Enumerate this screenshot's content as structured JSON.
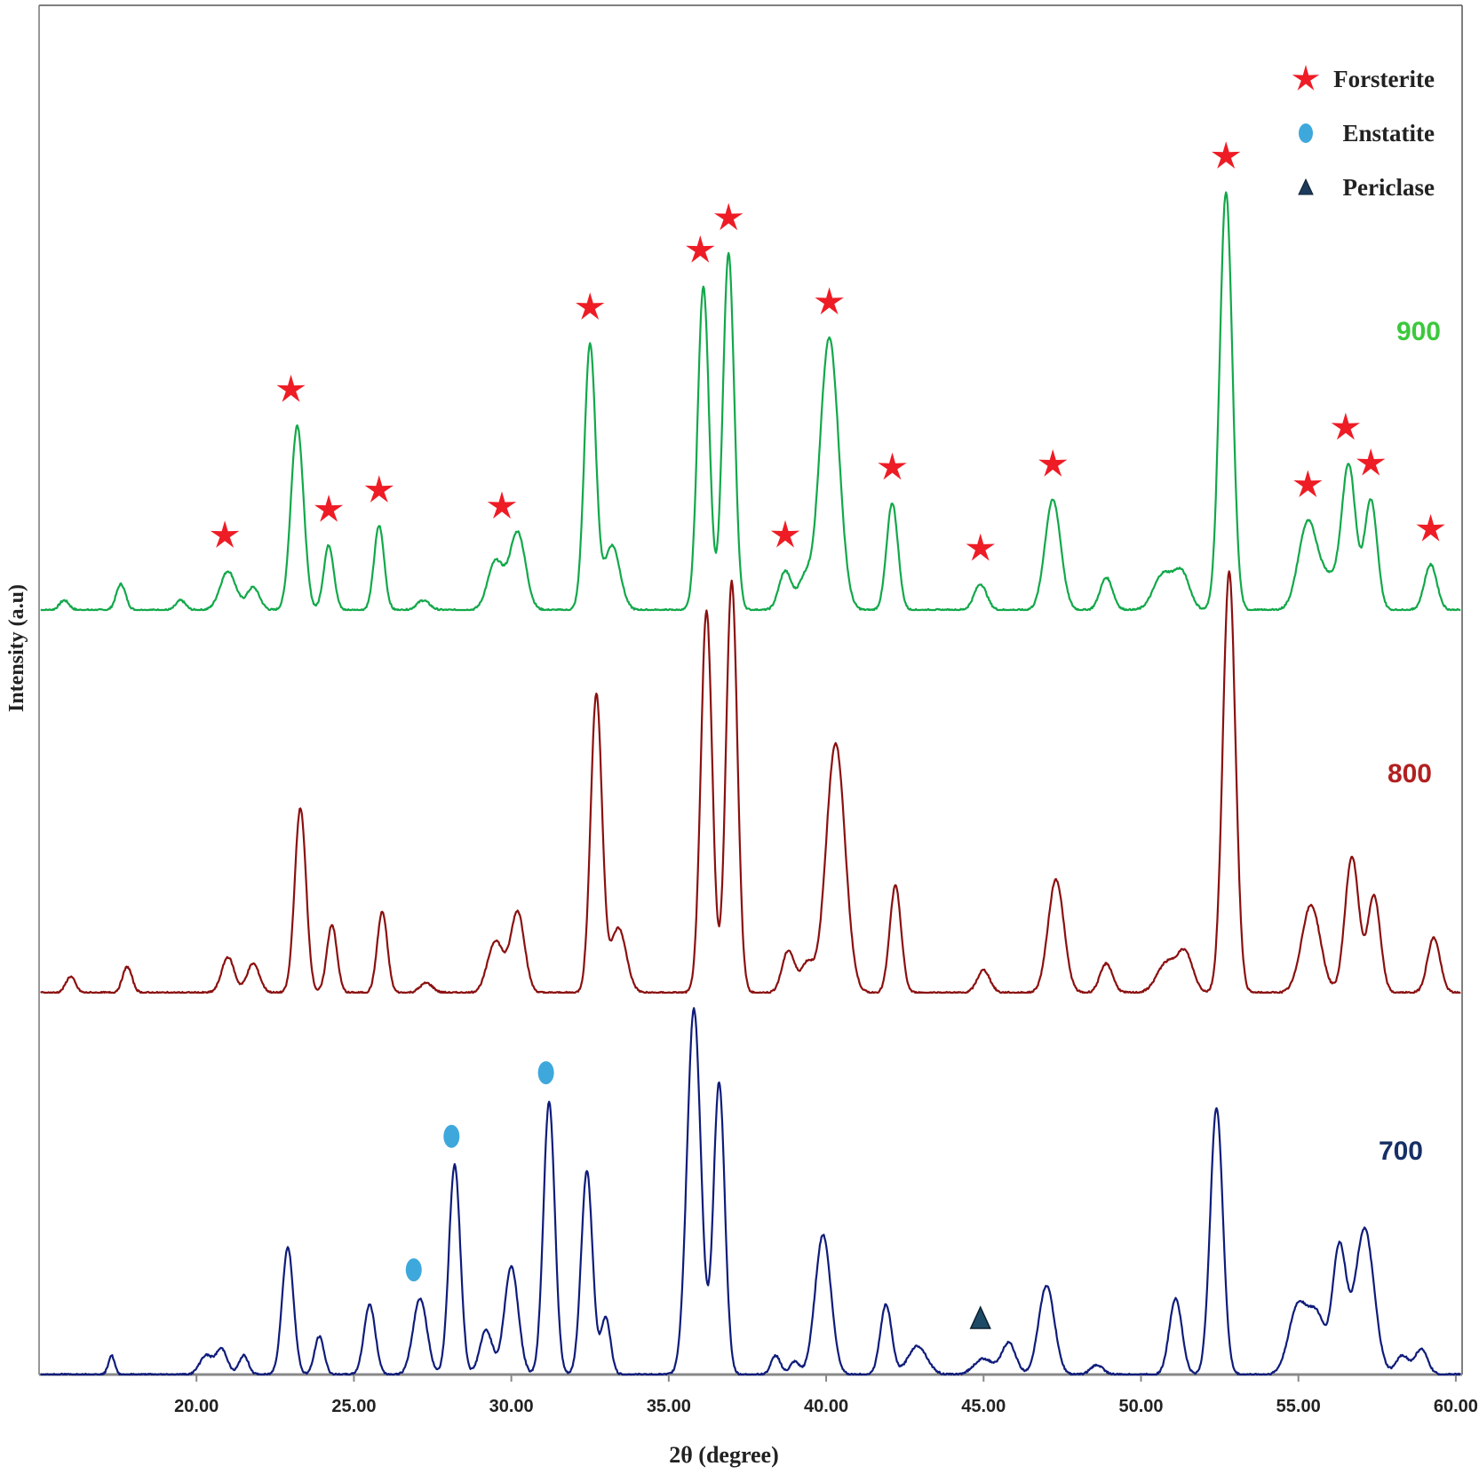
{
  "chart_data": {
    "type": "line",
    "xlabel": "2θ (degree)",
    "ylabel": "Intensity (a.u)",
    "xlim": [
      15.0,
      60.2
    ],
    "x_ticks": [
      "20.00",
      "25.00",
      "30.00",
      "35.00",
      "40.00",
      "45.00",
      "50.00",
      "55.00",
      "60.00"
    ],
    "grid": false,
    "legend_position": "top-right",
    "legend": [
      {
        "label": "Forsterite",
        "marker": "star",
        "color": "#ee1c25"
      },
      {
        "label": "Enstatite",
        "marker": "circle",
        "color": "#3ea8dc"
      },
      {
        "label": "Periclase",
        "marker": "triangle",
        "color": "#1d3a5c"
      }
    ],
    "series": [
      {
        "name": "900",
        "color": "#12a84a",
        "label_color": "#3cc83c",
        "peaks": [
          [
            15.8,
            0.03,
            0.15
          ],
          [
            17.6,
            0.08,
            0.15
          ],
          [
            19.5,
            0.03,
            0.15
          ],
          [
            21.0,
            0.12,
            0.25
          ],
          [
            21.8,
            0.07,
            0.2
          ],
          [
            23.2,
            0.57,
            0.2
          ],
          [
            24.2,
            0.2,
            0.16
          ],
          [
            25.8,
            0.26,
            0.16
          ],
          [
            27.2,
            0.03,
            0.2
          ],
          [
            29.5,
            0.15,
            0.25
          ],
          [
            30.2,
            0.24,
            0.25
          ],
          [
            32.5,
            0.82,
            0.18
          ],
          [
            33.2,
            0.2,
            0.25
          ],
          [
            36.1,
            1.0,
            0.18
          ],
          [
            36.9,
            1.1,
            0.18
          ],
          [
            38.7,
            0.12,
            0.2
          ],
          [
            39.3,
            0.09,
            0.2
          ],
          [
            40.1,
            0.84,
            0.3
          ],
          [
            42.1,
            0.33,
            0.18
          ],
          [
            44.9,
            0.08,
            0.2
          ],
          [
            47.2,
            0.34,
            0.25
          ],
          [
            48.9,
            0.1,
            0.2
          ],
          [
            50.7,
            0.11,
            0.3
          ],
          [
            51.3,
            0.11,
            0.25
          ],
          [
            52.7,
            1.29,
            0.2
          ],
          [
            55.3,
            0.27,
            0.3
          ],
          [
            56.0,
            0.09,
            0.3
          ],
          [
            56.6,
            0.44,
            0.22
          ],
          [
            57.3,
            0.34,
            0.2
          ],
          [
            59.2,
            0.14,
            0.2
          ]
        ],
        "markers": [
          {
            "type": "star",
            "x": [
              20.9,
              23.0,
              24.2,
              25.8,
              29.7,
              32.5,
              36.0,
              36.9,
              38.7,
              40.1,
              42.1,
              44.9,
              47.2,
              52.7,
              55.3,
              56.5,
              57.3,
              59.2
            ]
          }
        ]
      },
      {
        "name": "800",
        "color": "#8b1010",
        "label_color": "#b22020",
        "peaks": [
          [
            16.0,
            0.05,
            0.15
          ],
          [
            17.8,
            0.08,
            0.15
          ],
          [
            21.0,
            0.11,
            0.2
          ],
          [
            21.8,
            0.09,
            0.2
          ],
          [
            23.3,
            0.57,
            0.18
          ],
          [
            24.3,
            0.21,
            0.16
          ],
          [
            25.9,
            0.25,
            0.16
          ],
          [
            27.3,
            0.03,
            0.2
          ],
          [
            29.5,
            0.16,
            0.25
          ],
          [
            30.2,
            0.25,
            0.22
          ],
          [
            32.7,
            0.92,
            0.18
          ],
          [
            33.4,
            0.2,
            0.25
          ],
          [
            36.2,
            1.18,
            0.18
          ],
          [
            37.0,
            1.27,
            0.18
          ],
          [
            38.8,
            0.13,
            0.2
          ],
          [
            39.4,
            0.09,
            0.2
          ],
          [
            40.3,
            0.77,
            0.3
          ],
          [
            42.2,
            0.33,
            0.18
          ],
          [
            45.0,
            0.07,
            0.2
          ],
          [
            47.3,
            0.35,
            0.25
          ],
          [
            48.9,
            0.09,
            0.2
          ],
          [
            50.8,
            0.09,
            0.3
          ],
          [
            51.4,
            0.12,
            0.25
          ],
          [
            52.8,
            1.3,
            0.2
          ],
          [
            55.4,
            0.27,
            0.3
          ],
          [
            56.7,
            0.42,
            0.22
          ],
          [
            57.4,
            0.3,
            0.2
          ],
          [
            59.3,
            0.17,
            0.2
          ]
        ],
        "markers": []
      },
      {
        "name": "700",
        "color": "#0f1c7a",
        "label_color": "#162f66",
        "peaks": [
          [
            17.3,
            0.06,
            0.1
          ],
          [
            20.3,
            0.06,
            0.2
          ],
          [
            20.8,
            0.08,
            0.18
          ],
          [
            21.5,
            0.06,
            0.15
          ],
          [
            22.9,
            0.4,
            0.18
          ],
          [
            23.9,
            0.12,
            0.15
          ],
          [
            25.5,
            0.22,
            0.18
          ],
          [
            27.1,
            0.24,
            0.22
          ],
          [
            28.2,
            0.66,
            0.18
          ],
          [
            29.2,
            0.14,
            0.2
          ],
          [
            30.0,
            0.34,
            0.22
          ],
          [
            31.2,
            0.86,
            0.18
          ],
          [
            32.4,
            0.64,
            0.18
          ],
          [
            33.0,
            0.18,
            0.15
          ],
          [
            35.8,
            1.15,
            0.22
          ],
          [
            36.6,
            0.92,
            0.18
          ],
          [
            38.4,
            0.06,
            0.15
          ],
          [
            39.0,
            0.04,
            0.15
          ],
          [
            39.9,
            0.44,
            0.25
          ],
          [
            41.9,
            0.22,
            0.18
          ],
          [
            42.9,
            0.09,
            0.3
          ],
          [
            45.0,
            0.05,
            0.3
          ],
          [
            45.8,
            0.1,
            0.22
          ],
          [
            47.0,
            0.28,
            0.25
          ],
          [
            48.6,
            0.03,
            0.2
          ],
          [
            51.1,
            0.24,
            0.2
          ],
          [
            52.4,
            0.84,
            0.2
          ],
          [
            55.0,
            0.22,
            0.3
          ],
          [
            55.6,
            0.17,
            0.25
          ],
          [
            56.3,
            0.4,
            0.22
          ],
          [
            57.1,
            0.46,
            0.3
          ],
          [
            58.3,
            0.06,
            0.2
          ],
          [
            58.9,
            0.08,
            0.2
          ]
        ],
        "markers": [
          {
            "type": "circle",
            "x": [
              26.9,
              28.1,
              31.1
            ]
          },
          {
            "type": "triangle",
            "x": [
              44.9
            ]
          }
        ]
      }
    ]
  }
}
